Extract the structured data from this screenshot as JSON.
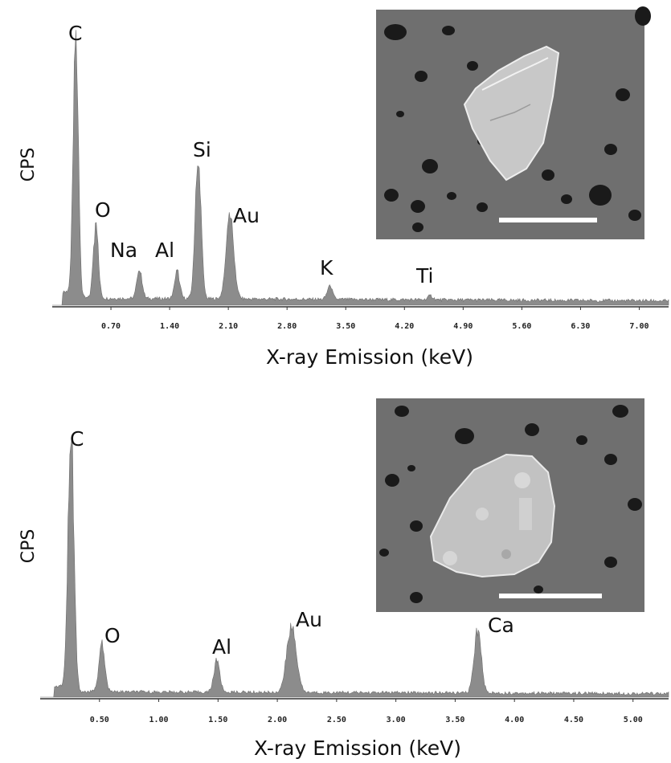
{
  "colors": {
    "spectrum_fill": "#8c8c8c",
    "spectrum_stroke": "#6e6e6e",
    "axis": "#333333",
    "sem_background": "#6f6f6f",
    "scale_bar": "#ffffff"
  },
  "chart_data": [
    {
      "type": "area",
      "ylabel": "CPS",
      "xlabel": "X-ray Emission (keV)",
      "xlim": [
        0.0,
        7.35
      ],
      "tick_values": [
        0.7,
        1.4,
        2.1,
        2.8,
        3.5,
        4.2,
        4.9,
        5.6,
        6.3,
        7.0
      ],
      "tick_labels": [
        "0.70",
        "1.40",
        "2.10",
        "2.80",
        "3.50",
        "4.20",
        "4.90",
        "5.60",
        "6.30",
        "7.00"
      ],
      "baseline": 0.02,
      "peaks": [
        {
          "label": "C",
          "energy": 0.28,
          "height": 1.0,
          "width": 0.03
        },
        {
          "label": "O",
          "energy": 0.52,
          "height": 0.26,
          "width": 0.03
        },
        {
          "label": "Na",
          "energy": 1.04,
          "height": 0.11,
          "width": 0.03
        },
        {
          "label": "Al",
          "energy": 1.49,
          "height": 0.1,
          "width": 0.03
        },
        {
          "label": "Si",
          "energy": 1.74,
          "height": 0.5,
          "width": 0.035
        },
        {
          "label": "Au",
          "energy": 2.12,
          "height": 0.3,
          "width": 0.045
        },
        {
          "label": "K",
          "energy": 3.31,
          "height": 0.05,
          "width": 0.03
        },
        {
          "label": "Ti",
          "energy": 4.51,
          "height": 0.015,
          "width": 0.03
        }
      ],
      "inset": "SEM image of particle with scale bar"
    },
    {
      "type": "area",
      "ylabel": "CPS",
      "xlabel": "X-ray Emission (keV)",
      "xlim": [
        0.0,
        5.3
      ],
      "tick_values": [
        0.5,
        1.0,
        1.5,
        2.0,
        2.5,
        3.0,
        3.5,
        4.0,
        4.5,
        5.0
      ],
      "tick_labels": [
        "0.50",
        "1.00",
        "1.50",
        "2.00",
        "2.50",
        "3.00",
        "3.50",
        "4.00",
        "4.50",
        "5.00"
      ],
      "baseline": 0.015,
      "peaks": [
        {
          "label": "C",
          "energy": 0.26,
          "height": 1.0,
          "width": 0.025
        },
        {
          "label": "O",
          "energy": 0.52,
          "height": 0.18,
          "width": 0.025
        },
        {
          "label": "Al",
          "energy": 1.49,
          "height": 0.12,
          "width": 0.025
        },
        {
          "label": "Au",
          "energy": 2.12,
          "height": 0.25,
          "width": 0.04
        },
        {
          "label": "Ca",
          "energy": 3.69,
          "height": 0.24,
          "width": 0.03
        }
      ],
      "inset": "SEM image of particle with scale bar"
    }
  ]
}
